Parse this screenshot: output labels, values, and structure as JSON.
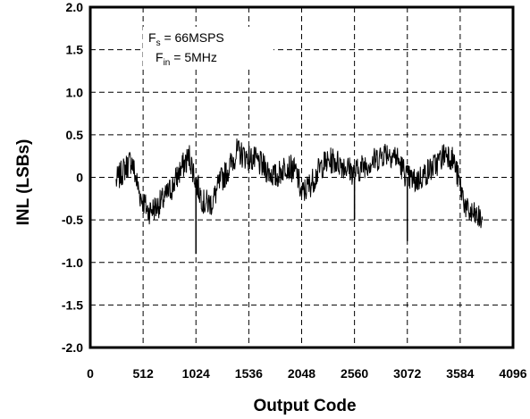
{
  "chart_data": {
    "type": "line",
    "xlabel": "Output Code",
    "ylabel": "INL (LSBs)",
    "xlim": [
      0,
      4096
    ],
    "ylim": [
      -2.0,
      2.0
    ],
    "x_ticks": [
      "0",
      "512",
      "1024",
      "1536",
      "2048",
      "2560",
      "3072",
      "3584",
      "4096"
    ],
    "x_tick_values": [
      0,
      512,
      1024,
      1536,
      2048,
      2560,
      3072,
      3584,
      4096
    ],
    "y_ticks": [
      "2.0",
      "1.5",
      "1.0",
      "0.5",
      "0",
      "-0.5",
      "-1.0",
      "-1.5",
      "-2.0"
    ],
    "y_tick_values": [
      2.0,
      1.5,
      1.0,
      0.5,
      0,
      -0.5,
      -1.0,
      -1.5,
      -2.0
    ],
    "grid": true,
    "grid_style": "dashed",
    "annotations": [
      {
        "base": "F",
        "sub": "s",
        "rest": " = 66MSPS"
      },
      {
        "base": "F",
        "sub": "in",
        "rest": " = 5MHz"
      }
    ],
    "series": [
      {
        "color": "#000000",
        "x": [
          250,
          330,
          400,
          480,
          560,
          640,
          720,
          800,
          880,
          960,
          1024,
          1100,
          1180,
          1260,
          1340,
          1420,
          1500,
          1600,
          1700,
          1800,
          1900,
          2000,
          2048,
          2150,
          2250,
          2350,
          2450,
          2560,
          2660,
          2760,
          2860,
          2960,
          3072,
          3150,
          3250,
          3350,
          3450,
          3520,
          3584,
          3650,
          3720,
          3800
        ],
        "y": [
          -0.05,
          0.1,
          0.2,
          -0.2,
          -0.4,
          -0.35,
          -0.25,
          -0.1,
          0.1,
          0.25,
          -0.05,
          -0.3,
          -0.3,
          -0.05,
          0.1,
          0.3,
          0.25,
          0.2,
          0.1,
          0.0,
          0.15,
          0.05,
          -0.2,
          -0.05,
          0.15,
          0.2,
          0.15,
          0.05,
          0.15,
          0.2,
          0.3,
          0.25,
          0.0,
          -0.05,
          0.05,
          0.15,
          0.3,
          0.2,
          -0.1,
          -0.4,
          -0.45,
          -0.5
        ]
      }
    ],
    "spikes": [
      {
        "x": 1024,
        "y": -0.9
      },
      {
        "x": 3072,
        "y": -0.75
      },
      {
        "x": 2560,
        "y": -0.5
      }
    ]
  }
}
